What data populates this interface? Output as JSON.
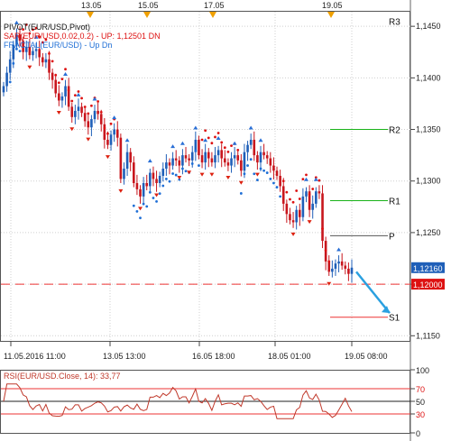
{
  "chart_data": {
    "type": "candlestick",
    "symbol_label": "PIVOT(EUR/USD,Pivot)",
    "indicators": [
      {
        "label": "SAR(EUR/USD,0.02,0.2)",
        "legend": "UP: 1,12501  DN",
        "color": "#dd1111"
      },
      {
        "label": "FRACTAL(EUR/USD)",
        "legend": "Up  Dn",
        "color": "#1f6fd6"
      }
    ],
    "top_time_labels": [
      "13.05",
      "15.05",
      "17.05",
      "19.05"
    ],
    "x_tick_labels": [
      "11.05.2016 11:00",
      "13.05 13:00",
      "16.05 18:00",
      "18.05 01:00",
      "19.05 08:00"
    ],
    "y_ticks": [
      "1,1450",
      "1,1400",
      "1,1350",
      "1,1300",
      "1,1250",
      "1,1200",
      "1,1150"
    ],
    "ylim": [
      1.1145,
      1.1465
    ],
    "pivot_levels": [
      {
        "name": "R3",
        "value": 1.1455
      },
      {
        "name": "R2",
        "value": 1.135
      },
      {
        "name": "R1",
        "value": 1.1281
      },
      {
        "name": "P",
        "value": 1.1247
      },
      {
        "name": "S1",
        "value": 1.1168
      }
    ],
    "current_price": {
      "label": "1,12160",
      "value": 1.1216
    },
    "alert_level": {
      "label": "1,12000",
      "value": 1.12
    },
    "close_path": [
      1.1392,
      1.1405,
      1.1418,
      1.1432,
      1.1442,
      1.1436,
      1.1425,
      1.143,
      1.1422,
      1.1426,
      1.1428,
      1.142,
      1.1415,
      1.1418,
      1.1405,
      1.1398,
      1.1385,
      1.1378,
      1.1382,
      1.1392,
      1.1372,
      1.1362,
      1.1368,
      1.1372,
      1.1366,
      1.1358,
      1.1352,
      1.136,
      1.1368,
      1.1365,
      1.1355,
      1.134,
      1.1335,
      1.1345,
      1.135,
      1.1342,
      1.1302,
      1.1312,
      1.1328,
      1.1318,
      1.1298,
      1.1292,
      1.1285,
      1.1298,
      1.1295,
      1.1308,
      1.1302,
      1.1298,
      1.1305,
      1.1312,
      1.1318,
      1.1315,
      1.1322,
      1.132,
      1.1315,
      1.1325,
      1.1322,
      1.132,
      1.1328,
      1.134,
      1.1325,
      1.1318,
      1.1328,
      1.1322,
      1.1318,
      1.1325,
      1.133,
      1.1322,
      1.1318,
      1.1315,
      1.1322,
      1.1325,
      1.132,
      1.131,
      1.1328,
      1.1335,
      1.134,
      1.1325,
      1.1318,
      1.1328,
      1.1325,
      1.1322,
      1.1315,
      1.131,
      1.1305,
      1.1295,
      1.1278,
      1.1268,
      1.1262,
      1.126,
      1.1272,
      1.1265,
      1.1285,
      1.129,
      1.1272,
      1.1278,
      1.129,
      1.1288,
      1.1242,
      1.1222,
      1.1212,
      1.1215,
      1.122,
      1.1222,
      1.1218,
      1.1215,
      1.121,
      1.1216
    ],
    "rsi": {
      "label": "RSI(EUR/USD.Close, 14): 33,77",
      "value": 33.77,
      "levels": [
        100,
        70,
        50,
        30,
        0
      ],
      "y_tick_labels": [
        "100",
        "70",
        "50",
        "30",
        "0"
      ]
    }
  }
}
